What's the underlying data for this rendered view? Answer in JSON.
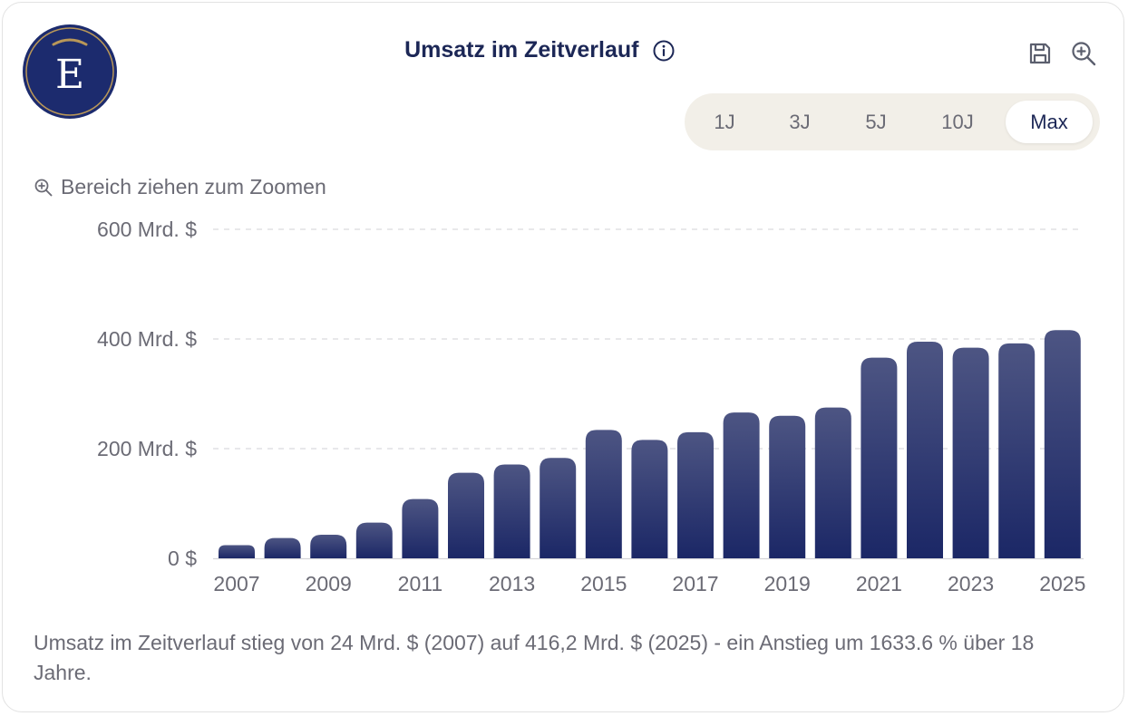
{
  "header": {
    "logo_letter": "E",
    "title": "Umsatz im Zeitverlauf",
    "info_icon": "info-icon",
    "save_icon": "save-icon",
    "zoom_icon": "zoom-in-icon"
  },
  "range_selector": {
    "options": [
      "1J",
      "3J",
      "5J",
      "10J",
      "Max"
    ],
    "active": "Max"
  },
  "zoom_hint": "Bereich ziehen zum Zoomen",
  "summary": "Umsatz im Zeitverlauf stieg von 24 Mrd. $ (2007) auf 416,2 Mrd. $ (2025) - ein Anstieg um 1633.6 % über 18 Jahre.",
  "colors": {
    "bar_top": "#4d5583",
    "bar_bottom": "#1b2766",
    "logo_bg": "#1c2b6e",
    "logo_ring": "#b99758",
    "range_bg": "#f2efe8",
    "title": "#1c2756",
    "muted": "#6b6b75"
  },
  "chart_data": {
    "type": "bar",
    "title": "",
    "xlabel": "",
    "ylabel": "",
    "categories": [
      "2007",
      "2008",
      "2009",
      "2010",
      "2011",
      "2012",
      "2013",
      "2014",
      "2015",
      "2016",
      "2017",
      "2018",
      "2019",
      "2020",
      "2021",
      "2022",
      "2023",
      "2024",
      "2025"
    ],
    "values": [
      24,
      37,
      43,
      65,
      108,
      156,
      171,
      183,
      234,
      216,
      230,
      266,
      260,
      275,
      366,
      395,
      384,
      392,
      416.2
    ],
    "y_ticks": [
      {
        "value": 0,
        "label": "0 $"
      },
      {
        "value": 200,
        "label": "200 Mrd. $"
      },
      {
        "value": 400,
        "label": "400 Mrd. $"
      },
      {
        "value": 600,
        "label": "600 Mrd. $"
      }
    ],
    "x_tick_labels": [
      "2007",
      "2009",
      "2011",
      "2013",
      "2015",
      "2017",
      "2019",
      "2021",
      "2023",
      "2025"
    ],
    "ylim": [
      0,
      600
    ],
    "grid": true,
    "legend": "none"
  }
}
